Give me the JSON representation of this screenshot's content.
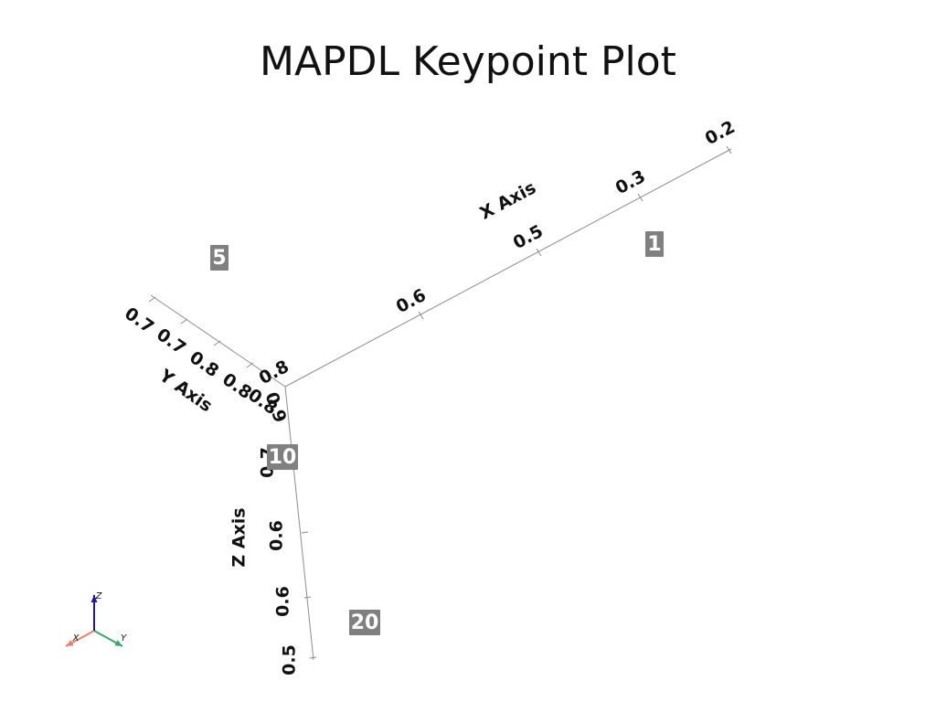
{
  "chart_data": {
    "type": "scatter",
    "title": "MAPDL Keypoint Plot",
    "axes": {
      "x": {
        "label": "X Axis",
        "ticks": [
          "0.2",
          "0.3",
          "0.5",
          "0.6",
          "0.8"
        ]
      },
      "y": {
        "label": "Y Axis",
        "ticks": [
          "0.7",
          "0.7",
          "0.8",
          "0.8",
          "0.8"
        ]
      },
      "z": {
        "label": "Z Axis",
        "ticks": [
          "0.9",
          "0.7",
          "0.6",
          "0.6",
          "0.5"
        ]
      }
    },
    "keypoints": [
      {
        "label": "1"
      },
      {
        "label": "5"
      },
      {
        "label": "10"
      },
      {
        "label": "20"
      }
    ],
    "orientation_widget": {
      "x": "X",
      "y": "Y",
      "z": "Z"
    },
    "colors": {
      "label_bg": "#808080",
      "label_text": "#ffffff",
      "axis_line": "#8c8c8c",
      "widget_x": "#e8806c",
      "widget_y": "#3aa66e",
      "widget_z": "#1a1aa6"
    }
  }
}
